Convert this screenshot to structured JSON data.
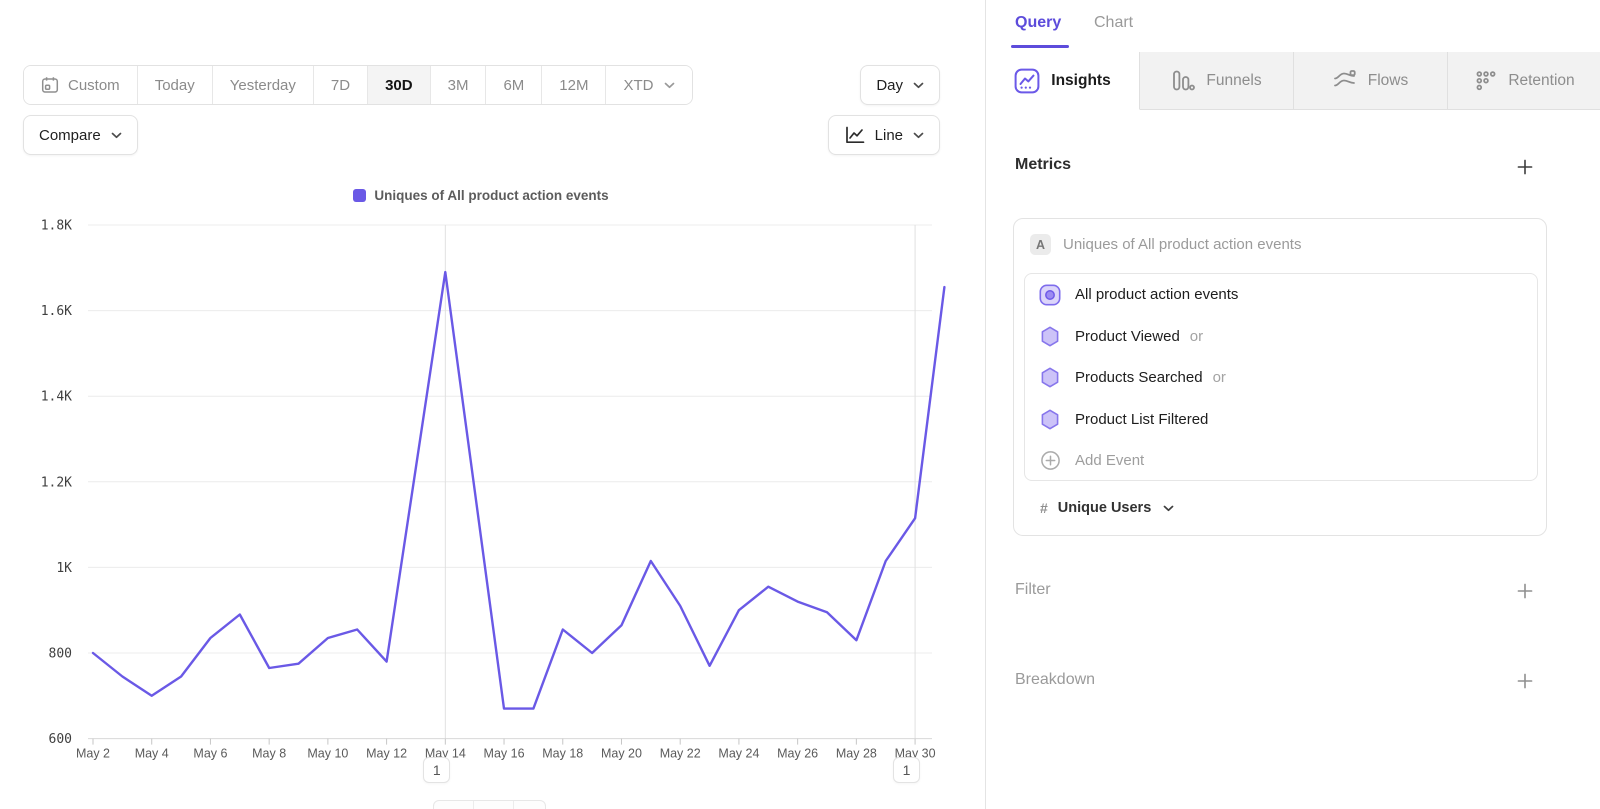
{
  "toolbar": {
    "date_ranges": [
      {
        "label": "Custom",
        "icon": "calendar",
        "active": false
      },
      {
        "label": "Today",
        "active": false
      },
      {
        "label": "Yesterday",
        "active": false
      },
      {
        "label": "7D",
        "active": false
      },
      {
        "label": "30D",
        "active": true
      },
      {
        "label": "3M",
        "active": false
      },
      {
        "label": "6M",
        "active": false
      },
      {
        "label": "12M",
        "active": false
      },
      {
        "label": "XTD",
        "active": false,
        "chevron": true
      }
    ],
    "interval": {
      "label": "Day"
    },
    "compare": {
      "label": "Compare"
    },
    "chart_type": {
      "label": "Line"
    }
  },
  "legend": {
    "label": "Uniques of All product action events",
    "color": "#6A59E6"
  },
  "chart_data": {
    "type": "line",
    "x": [
      "May 2",
      "May 3",
      "May 4",
      "May 5",
      "May 6",
      "May 7",
      "May 8",
      "May 9",
      "May 10",
      "May 11",
      "May 12",
      "May 13",
      "May 14",
      "May 15",
      "May 16",
      "May 17",
      "May 18",
      "May 19",
      "May 20",
      "May 21",
      "May 22",
      "May 23",
      "May 24",
      "May 25",
      "May 26",
      "May 27",
      "May 28",
      "May 29",
      "May 30",
      "May 31"
    ],
    "series": [
      {
        "name": "Uniques of All product action events",
        "color": "#6A59E6",
        "values": [
          800,
          745,
          700,
          745,
          835,
          890,
          765,
          775,
          835,
          855,
          780,
          1235,
          1690,
          1180,
          670,
          670,
          855,
          800,
          865,
          1015,
          910,
          770,
          900,
          955,
          920,
          895,
          830,
          1015,
          1115,
          1655
        ]
      }
    ],
    "ylim": [
      600,
      1800
    ],
    "y_tick_step": 200,
    "y_ticks": [
      {
        "label": "1.8K",
        "value": 1800
      },
      {
        "label": "1.6K",
        "value": 1600
      },
      {
        "label": "1.4K",
        "value": 1400
      },
      {
        "label": "1.2K",
        "value": 1200
      },
      {
        "label": "1K",
        "value": 1000
      },
      {
        "label": "800",
        "value": 800
      },
      {
        "label": "600",
        "value": 600
      }
    ],
    "x_label_every": 2,
    "grid": "horizontal",
    "legend_position": "top-center",
    "annotations": [
      {
        "label": "1",
        "x": "May 14",
        "index": 12
      },
      {
        "label": "1",
        "x": "May 30",
        "index": 28
      }
    ]
  },
  "query_panel": {
    "tabs": [
      {
        "label": "Query",
        "active": true
      },
      {
        "label": "Chart",
        "active": false
      }
    ],
    "report_tabs": [
      {
        "label": "Insights",
        "icon": "insights",
        "active": true
      },
      {
        "label": "Funnels",
        "icon": "funnels",
        "active": false
      },
      {
        "label": "Flows",
        "icon": "flows",
        "active": false
      },
      {
        "label": "Retention",
        "icon": "retention",
        "active": false
      }
    ],
    "metrics": {
      "title": "Metrics",
      "group_label": "A",
      "group_title": "Uniques of All product action events",
      "events": [
        {
          "label": "All product action events",
          "icon": "allevents",
          "suffix": ""
        },
        {
          "label": "Product Viewed",
          "icon": "hexagon",
          "suffix": "or"
        },
        {
          "label": "Products Searched",
          "icon": "hexagon",
          "suffix": "or"
        },
        {
          "label": "Product List Filtered",
          "icon": "hexagon",
          "suffix": ""
        }
      ],
      "add_event_label": "Add Event",
      "measurement": {
        "prefix": "#",
        "label": "Unique Users"
      }
    },
    "filter": {
      "title": "Filter"
    },
    "breakdown": {
      "title": "Breakdown"
    }
  }
}
